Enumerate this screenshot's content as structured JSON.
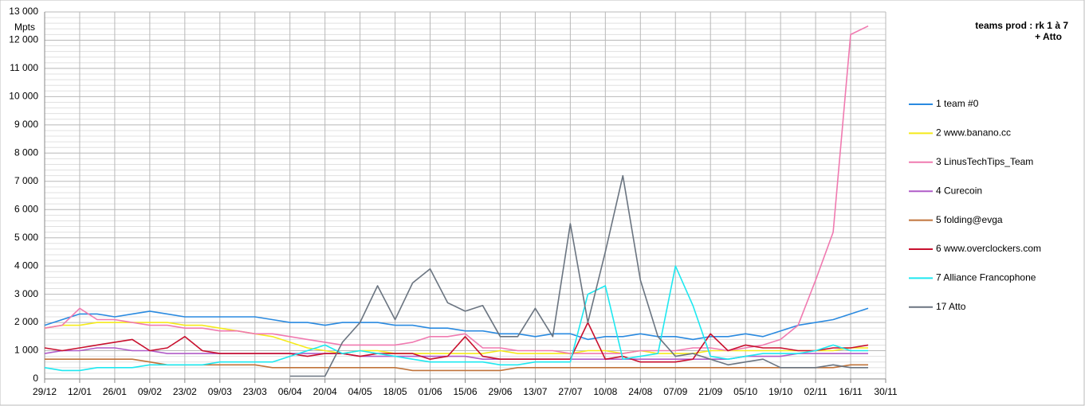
{
  "chart_data": {
    "type": "line",
    "title": "teams prod :  rk 1 à 7",
    "subtitle": "+ Atto",
    "y_label": "Mpts",
    "categories": [
      "29/12",
      null,
      "12/01",
      null,
      "26/01",
      null,
      "09/02",
      null,
      "23/02",
      null,
      "09/03",
      null,
      "23/03",
      null,
      "06/04",
      null,
      "20/04",
      null,
      "04/05",
      null,
      "18/05",
      null,
      "01/06",
      null,
      "15/06",
      null,
      "29/06",
      null,
      "13/07",
      null,
      "27/07",
      null,
      "10/08",
      null,
      "24/08",
      null,
      "07/09",
      null,
      "21/09",
      null,
      "05/10",
      null,
      "19/10",
      null,
      "02/11",
      null,
      "16/11",
      null,
      "30/11"
    ],
    "ylim": [
      0,
      13000
    ],
    "yticks": [
      0,
      {
        "value": 1000,
        "label": "1 000"
      },
      {
        "value": 2000,
        "label": "2 000"
      },
      {
        "value": 3000,
        "label": "3 000"
      },
      {
        "value": 4000,
        "label": "4 000"
      },
      {
        "value": 5000,
        "label": "5 000"
      },
      {
        "value": 6000,
        "label": "6 000"
      },
      {
        "value": 7000,
        "label": "7 000"
      },
      {
        "value": 8000,
        "label": "8 000"
      },
      {
        "value": 9000,
        "label": "9 000"
      },
      {
        "value": 10000,
        "label": "10 000"
      },
      {
        "value": 11000,
        "label": "11 000"
      },
      {
        "value": 12000,
        "label": "12 000"
      },
      {
        "value": 13000,
        "label": "13 000"
      }
    ],
    "grid": true,
    "legend": "right",
    "series": [
      {
        "name": "1 team #0",
        "color": "#2a8ae0",
        "values": [
          1900,
          2100,
          2300,
          2300,
          2200,
          2300,
          2400,
          2300,
          2200,
          2200,
          2200,
          2200,
          2200,
          2100,
          2000,
          2000,
          1900,
          2000,
          2000,
          2000,
          1900,
          1900,
          1800,
          1800,
          1700,
          1700,
          1600,
          1600,
          1500,
          1600,
          1600,
          1400,
          1500,
          1500,
          1600,
          1500,
          1500,
          1400,
          1500,
          1500,
          1600,
          1500,
          1700,
          1900,
          2000,
          2100,
          2300,
          2500,
          null
        ]
      },
      {
        "name": "2 www.banano.cc",
        "color": "#f5ea1a",
        "values": [
          1800,
          1900,
          1900,
          2000,
          2000,
          2000,
          2000,
          2000,
          1900,
          1900,
          1800,
          1700,
          1600,
          1500,
          1300,
          1100,
          1000,
          900,
          1000,
          1000,
          900,
          900,
          900,
          900,
          900,
          900,
          1000,
          900,
          900,
          900,
          900,
          1000,
          1000,
          900,
          1000,
          900,
          900,
          900,
          1000,
          1000,
          1000,
          1000,
          1000,
          1000,
          1000,
          1000,
          1100,
          1100,
          null
        ]
      },
      {
        "name": "3 LinusTechTips_Team",
        "color": "#f07ab0",
        "values": [
          1800,
          1900,
          2500,
          2100,
          2100,
          2000,
          1900,
          1900,
          1800,
          1800,
          1700,
          1700,
          1600,
          1600,
          1500,
          1400,
          1300,
          1200,
          1200,
          1200,
          1200,
          1300,
          1500,
          1500,
          1600,
          1100,
          1100,
          1000,
          1000,
          1000,
          900,
          900,
          900,
          900,
          1000,
          1000,
          1000,
          1100,
          1100,
          1000,
          1100,
          1200,
          1400,
          1900,
          3500,
          5200,
          12200,
          12500,
          null
        ]
      },
      {
        "name": "4 Curecoin",
        "color": "#b05cc8",
        "values": [
          900,
          1000,
          1000,
          1100,
          1100,
          1000,
          1000,
          900,
          900,
          900,
          900,
          900,
          900,
          900,
          900,
          900,
          900,
          900,
          800,
          800,
          800,
          800,
          800,
          800,
          800,
          700,
          700,
          700,
          700,
          700,
          700,
          700,
          700,
          700,
          700,
          700,
          700,
          700,
          700,
          700,
          800,
          800,
          800,
          900,
          900,
          900,
          900,
          900,
          null
        ]
      },
      {
        "name": "5 folding@evga",
        "color": "#c0733a",
        "values": [
          700,
          700,
          700,
          700,
          700,
          700,
          600,
          500,
          500,
          500,
          500,
          500,
          500,
          400,
          400,
          400,
          400,
          400,
          400,
          400,
          400,
          300,
          300,
          300,
          300,
          300,
          300,
          400,
          400,
          400,
          400,
          400,
          400,
          400,
          400,
          400,
          400,
          400,
          400,
          400,
          400,
          400,
          400,
          400,
          400,
          400,
          500,
          500,
          null
        ]
      },
      {
        "name": "6 www.overclockers.com",
        "color": "#c8102e",
        "values": [
          1100,
          1000,
          1100,
          1200,
          1300,
          1400,
          1000,
          1100,
          1500,
          1000,
          900,
          900,
          900,
          900,
          900,
          800,
          900,
          900,
          800,
          900,
          900,
          900,
          700,
          800,
          1500,
          800,
          700,
          700,
          700,
          700,
          700,
          2000,
          700,
          800,
          600,
          600,
          600,
          700,
          1600,
          1000,
          1200,
          1100,
          1100,
          1000,
          1000,
          1100,
          1100,
          1200,
          null
        ]
      },
      {
        "name": "7 Alliance Francophone",
        "color": "#1ee8f0",
        "values": [
          400,
          300,
          300,
          400,
          400,
          400,
          500,
          500,
          500,
          500,
          600,
          600,
          600,
          600,
          800,
          1000,
          1200,
          900,
          1000,
          900,
          800,
          700,
          600,
          600,
          600,
          600,
          500,
          500,
          600,
          600,
          600,
          3000,
          3300,
          700,
          800,
          900,
          4000,
          2600,
          800,
          700,
          800,
          900,
          900,
          900,
          1000,
          1200,
          1000,
          1000,
          null
        ]
      },
      {
        "name": "17 Atto",
        "color": "#6a7480",
        "values": [
          null,
          null,
          null,
          null,
          null,
          null,
          null,
          null,
          null,
          null,
          null,
          null,
          null,
          null,
          100,
          100,
          100,
          1300,
          2000,
          3300,
          2100,
          3400,
          3900,
          2700,
          2400,
          2600,
          1500,
          1500,
          2500,
          1500,
          5500,
          2000,
          4500,
          7200,
          3500,
          1500,
          800,
          900,
          700,
          500,
          600,
          700,
          400,
          400,
          400,
          500,
          400,
          400,
          null
        ]
      }
    ]
  }
}
